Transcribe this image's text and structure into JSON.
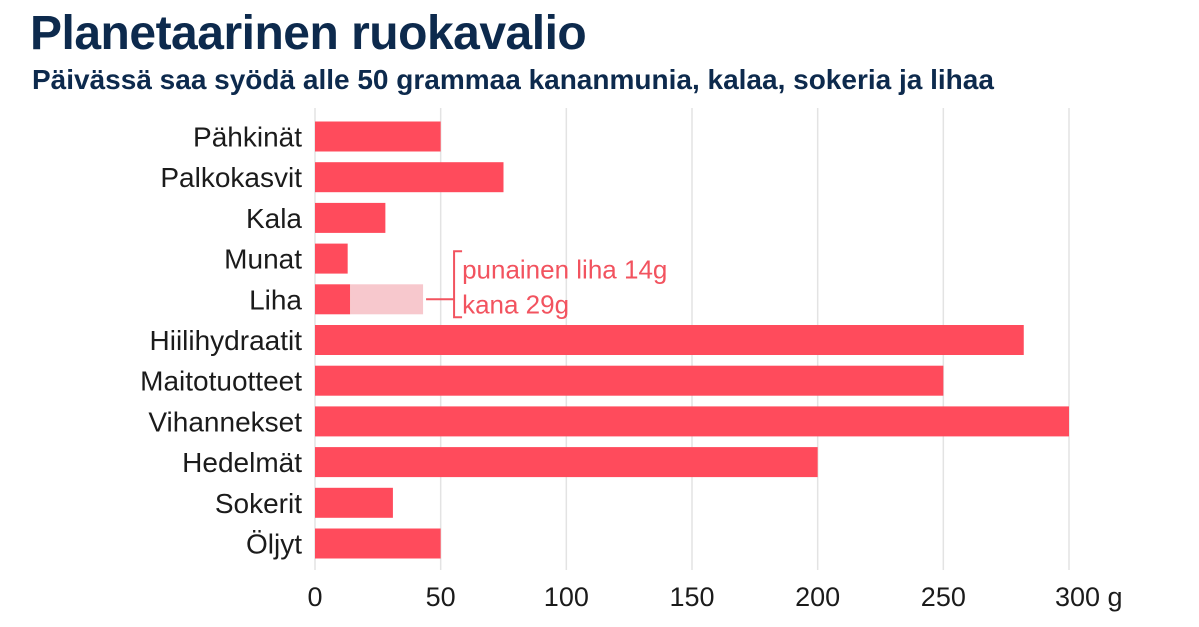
{
  "title": "Planetaarinen ruokavalio",
  "subtitle": "Päivässä saa syödä alle 50 grammaa kananmunia, kalaa, sokeria ja lihaa",
  "colors": {
    "bar": "#ff4b5c",
    "bar_light": "#f7c8cd",
    "annotation": "#f2535f",
    "grid": "#e3e3e3",
    "title": "#0d2a4d"
  },
  "chart_data": {
    "type": "bar",
    "orientation": "horizontal",
    "stacked": true,
    "categories": [
      "Pähkinät",
      "Palkokasvit",
      "Kala",
      "Munat",
      "Liha",
      "Hiilihydraatit",
      "Maitotuotteet",
      "Vihannekset",
      "Hedelmät",
      "Sokerit",
      "Öljyt"
    ],
    "series": [
      {
        "values": [
          50,
          75,
          28,
          13,
          14,
          282,
          250,
          300,
          200,
          31,
          50
        ]
      },
      {
        "values": [
          0,
          0,
          0,
          0,
          29,
          0,
          0,
          0,
          0,
          0,
          0
        ]
      }
    ],
    "x_ticks": [
      "0",
      "50",
      "100",
      "150",
      "200",
      "250",
      "300 g"
    ],
    "xlim": [
      0,
      300
    ],
    "grid": true,
    "annotation": {
      "category": "Liha",
      "lines": [
        "punainen liha 14g",
        "kana 29g"
      ]
    }
  }
}
